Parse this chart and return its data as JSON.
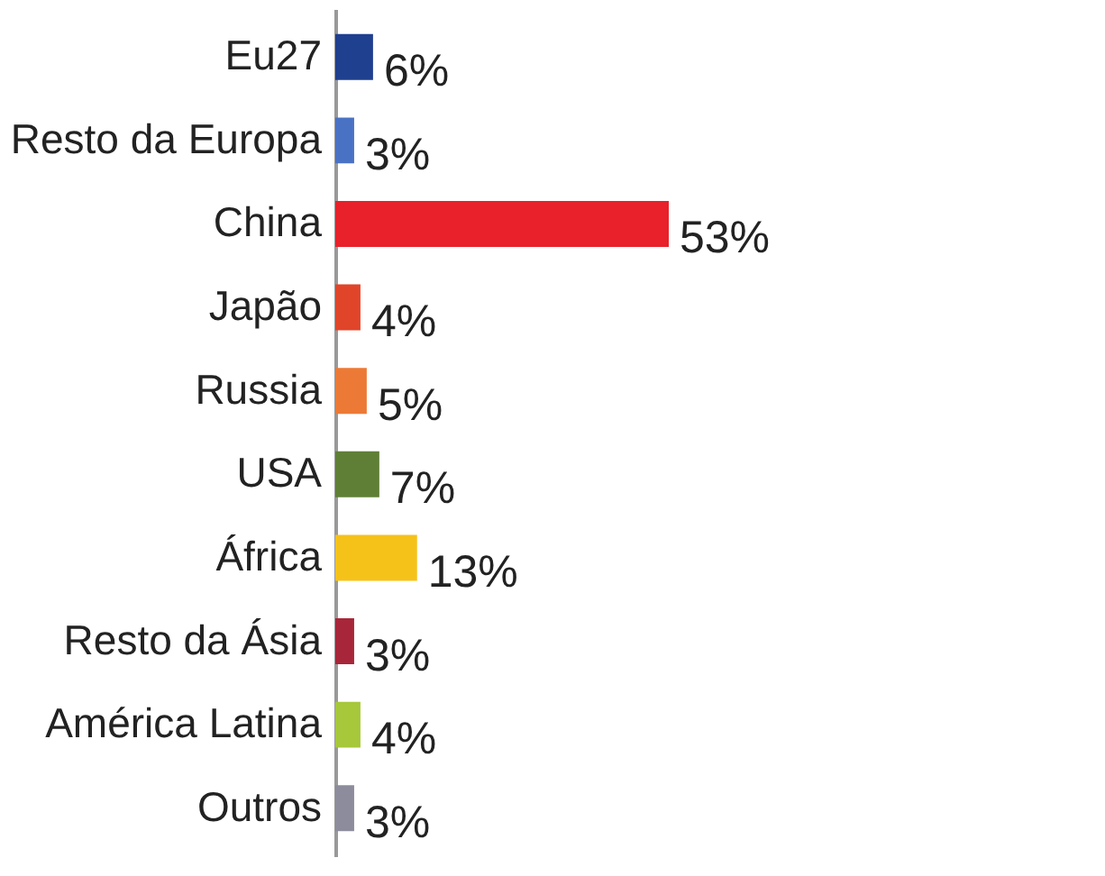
{
  "chart_data": {
    "type": "bar",
    "orientation": "horizontal",
    "categories": [
      "Eu27",
      "Resto da Europa",
      "China",
      "Japão",
      "Russia",
      "USA",
      "África",
      "Resto da Ásia",
      "América Latina",
      "Outros"
    ],
    "values": [
      6,
      3,
      53,
      4,
      5,
      7,
      13,
      3,
      4,
      3
    ],
    "colors": [
      "#1f3f8f",
      "#4a72c4",
      "#e8212a",
      "#e0452a",
      "#ec7a36",
      "#5f7f36",
      "#f5c219",
      "#a8263a",
      "#a6c83a",
      "#8c8c9c"
    ],
    "value_labels": [
      "6%",
      "3%",
      "53%",
      "4%",
      "5%",
      "7%",
      "13%",
      "3%",
      "4%",
      "3%"
    ]
  }
}
